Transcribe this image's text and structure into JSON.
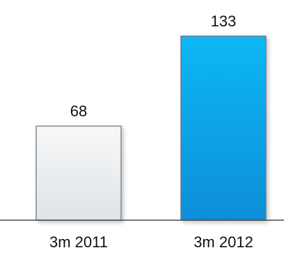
{
  "chart_data": {
    "type": "bar",
    "categories": [
      "3m 2011",
      "3m 2012"
    ],
    "values": [
      68,
      133
    ],
    "data_labels": [
      "68",
      "133"
    ],
    "ylim": [
      0,
      133
    ],
    "grid": false,
    "legend": "none",
    "colors": {
      "bar_2011_top": "#f7f8f9",
      "bar_2011_bottom": "#dfe3e6",
      "bar_2011_stroke": "#7d8790",
      "bar_2012_top": "#08b7f4",
      "bar_2012_bottom": "#0a8fd8",
      "bar_2012_stroke": "#6b7c88",
      "axis": "#4a4a4a",
      "text": "#111111"
    }
  }
}
